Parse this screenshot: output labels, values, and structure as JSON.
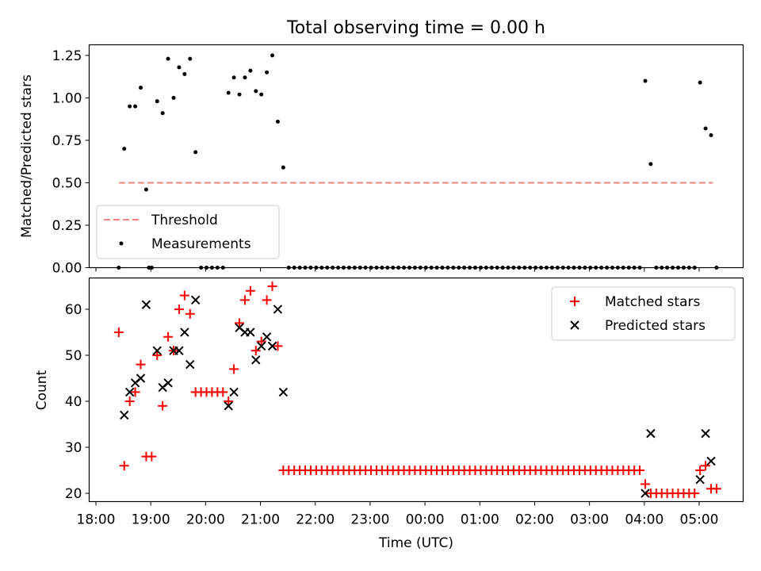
{
  "chart_data": [
    {
      "type": "scatter",
      "title": "Total observing time = 0.00 h",
      "xlabel": "",
      "ylabel": "Matched/Predicted stars",
      "xlim": [
        "18:00",
        "05:55"
      ],
      "ylim": [
        0,
        1.3125
      ],
      "yticks": [
        "0.00",
        "0.25",
        "0.50",
        "0.75",
        "1.00",
        "1.25"
      ],
      "ytick_values": [
        0,
        0.25,
        0.5,
        0.75,
        1.0,
        1.25
      ],
      "grid": false,
      "legend": "lower-left",
      "series": [
        {
          "name": "Threshold",
          "kind": "dashed-line",
          "color": "#ff8080",
          "x": [
            "18:25",
            "05:15"
          ],
          "y": [
            0.5,
            0.5
          ]
        },
        {
          "name": "Measurements",
          "kind": "dots",
          "color": "#000000",
          "points": [
            [
              "18:25",
              0.0
            ],
            [
              "18:31",
              0.7
            ],
            [
              "18:37",
              0.95
            ],
            [
              "18:43",
              0.95
            ],
            [
              "18:49",
              1.06
            ],
            [
              "18:55",
              0.46
            ],
            [
              "18:58",
              0.0
            ],
            [
              "19:01",
              0.0
            ],
            [
              "19:07",
              0.98
            ],
            [
              "19:13",
              0.91
            ],
            [
              "19:19",
              1.23
            ],
            [
              "19:25",
              1.0
            ],
            [
              "19:31",
              1.18
            ],
            [
              "19:37",
              1.14
            ],
            [
              "19:43",
              1.23
            ],
            [
              "19:49",
              0.68
            ],
            [
              "19:55",
              0.0
            ],
            [
              "20:01",
              0.0
            ],
            [
              "20:07",
              0.0
            ],
            [
              "20:13",
              0.0
            ],
            [
              "20:19",
              0.0
            ],
            [
              "20:25",
              1.03
            ],
            [
              "20:31",
              1.12
            ],
            [
              "20:37",
              1.02
            ],
            [
              "20:43",
              1.12
            ],
            [
              "20:49",
              1.16
            ],
            [
              "20:55",
              1.04
            ],
            [
              "21:01",
              1.02
            ],
            [
              "21:07",
              1.15
            ],
            [
              "21:13",
              1.25
            ],
            [
              "21:19",
              0.86
            ],
            [
              "21:25",
              0.59
            ],
            [
              "21:31",
              0.0
            ],
            [
              "21:37",
              0.0
            ],
            [
              "21:43",
              0.0
            ],
            [
              "21:49",
              0.0
            ],
            [
              "21:55",
              0.0
            ],
            [
              "22:01",
              0.0
            ],
            [
              "22:07",
              0.0
            ],
            [
              "22:13",
              0.0
            ],
            [
              "22:19",
              0.0
            ],
            [
              "22:25",
              0.0
            ],
            [
              "22:31",
              0.0
            ],
            [
              "22:37",
              0.0
            ],
            [
              "22:43",
              0.0
            ],
            [
              "22:49",
              0.0
            ],
            [
              "22:55",
              0.0
            ],
            [
              "23:01",
              0.0
            ],
            [
              "23:07",
              0.0
            ],
            [
              "23:13",
              0.0
            ],
            [
              "23:19",
              0.0
            ],
            [
              "23:25",
              0.0
            ],
            [
              "23:31",
              0.0
            ],
            [
              "23:37",
              0.0
            ],
            [
              "23:43",
              0.0
            ],
            [
              "23:49",
              0.0
            ],
            [
              "23:55",
              0.0
            ],
            [
              "00:01",
              0.0
            ],
            [
              "00:07",
              0.0
            ],
            [
              "00:13",
              0.0
            ],
            [
              "00:19",
              0.0
            ],
            [
              "00:25",
              0.0
            ],
            [
              "00:31",
              0.0
            ],
            [
              "00:37",
              0.0
            ],
            [
              "00:43",
              0.0
            ],
            [
              "00:49",
              0.0
            ],
            [
              "00:55",
              0.0
            ],
            [
              "01:01",
              0.0
            ],
            [
              "01:07",
              0.0
            ],
            [
              "01:13",
              0.0
            ],
            [
              "01:19",
              0.0
            ],
            [
              "01:25",
              0.0
            ],
            [
              "01:31",
              0.0
            ],
            [
              "01:37",
              0.0
            ],
            [
              "01:43",
              0.0
            ],
            [
              "01:49",
              0.0
            ],
            [
              "01:55",
              0.0
            ],
            [
              "02:01",
              0.0
            ],
            [
              "02:07",
              0.0
            ],
            [
              "02:13",
              0.0
            ],
            [
              "02:19",
              0.0
            ],
            [
              "02:25",
              0.0
            ],
            [
              "02:31",
              0.0
            ],
            [
              "02:37",
              0.0
            ],
            [
              "02:43",
              0.0
            ],
            [
              "02:49",
              0.0
            ],
            [
              "02:55",
              0.0
            ],
            [
              "03:01",
              0.0
            ],
            [
              "03:07",
              0.0
            ],
            [
              "03:13",
              0.0
            ],
            [
              "03:19",
              0.0
            ],
            [
              "03:25",
              0.0
            ],
            [
              "03:31",
              0.0
            ],
            [
              "03:37",
              0.0
            ],
            [
              "03:43",
              0.0
            ],
            [
              "03:49",
              0.0
            ],
            [
              "03:55",
              0.0
            ],
            [
              "04:01",
              1.1
            ],
            [
              "04:07",
              0.61
            ],
            [
              "04:13",
              0.0
            ],
            [
              "04:19",
              0.0
            ],
            [
              "04:25",
              0.0
            ],
            [
              "04:31",
              0.0
            ],
            [
              "04:37",
              0.0
            ],
            [
              "04:43",
              0.0
            ],
            [
              "04:49",
              0.0
            ],
            [
              "04:55",
              0.0
            ],
            [
              "05:01",
              1.09
            ],
            [
              "05:07",
              0.82
            ],
            [
              "05:13",
              0.78
            ],
            [
              "05:19",
              0.0
            ]
          ]
        }
      ]
    },
    {
      "type": "scatter",
      "title": "",
      "xlabel": "Time (UTC)",
      "ylabel": "Count",
      "xlim": [
        "18:00",
        "05:55"
      ],
      "ylim": [
        18.2,
        66.8
      ],
      "yticks": [
        "20",
        "30",
        "40",
        "50",
        "60"
      ],
      "ytick_values": [
        20,
        30,
        40,
        50,
        60
      ],
      "xticks": [
        "18:00",
        "19:00",
        "20:00",
        "21:00",
        "22:00",
        "23:00",
        "00:00",
        "01:00",
        "02:00",
        "03:00",
        "04:00",
        "05:00"
      ],
      "grid": false,
      "legend": "upper-right",
      "series": [
        {
          "name": "Matched stars",
          "marker": "+",
          "color": "#ff0000",
          "points": [
            [
              "18:25",
              55
            ],
            [
              "18:31",
              26
            ],
            [
              "18:37",
              40
            ],
            [
              "18:43",
              42
            ],
            [
              "18:49",
              48
            ],
            [
              "18:55",
              28
            ],
            [
              "19:01",
              28
            ],
            [
              "19:07",
              50
            ],
            [
              "19:13",
              39
            ],
            [
              "19:19",
              54
            ],
            [
              "19:25",
              51
            ],
            [
              "19:31",
              60
            ],
            [
              "19:37",
              63
            ],
            [
              "19:43",
              59
            ],
            [
              "19:49",
              42
            ],
            [
              "19:55",
              42
            ],
            [
              "20:01",
              42
            ],
            [
              "20:07",
              42
            ],
            [
              "20:13",
              42
            ],
            [
              "20:19",
              42
            ],
            [
              "20:25",
              40
            ],
            [
              "20:31",
              47
            ],
            [
              "20:37",
              57
            ],
            [
              "20:43",
              62
            ],
            [
              "20:49",
              64
            ],
            [
              "20:55",
              51
            ],
            [
              "21:01",
              53
            ],
            [
              "21:07",
              62
            ],
            [
              "21:13",
              65
            ],
            [
              "21:19",
              52
            ],
            [
              "21:25",
              25
            ],
            [
              "21:31",
              25
            ],
            [
              "21:37",
              25
            ],
            [
              "21:43",
              25
            ],
            [
              "21:49",
              25
            ],
            [
              "21:55",
              25
            ],
            [
              "22:01",
              25
            ],
            [
              "22:07",
              25
            ],
            [
              "22:13",
              25
            ],
            [
              "22:19",
              25
            ],
            [
              "22:25",
              25
            ],
            [
              "22:31",
              25
            ],
            [
              "22:37",
              25
            ],
            [
              "22:43",
              25
            ],
            [
              "22:49",
              25
            ],
            [
              "22:55",
              25
            ],
            [
              "23:01",
              25
            ],
            [
              "23:07",
              25
            ],
            [
              "23:13",
              25
            ],
            [
              "23:19",
              25
            ],
            [
              "23:25",
              25
            ],
            [
              "23:31",
              25
            ],
            [
              "23:37",
              25
            ],
            [
              "23:43",
              25
            ],
            [
              "23:49",
              25
            ],
            [
              "23:55",
              25
            ],
            [
              "00:01",
              25
            ],
            [
              "00:07",
              25
            ],
            [
              "00:13",
              25
            ],
            [
              "00:19",
              25
            ],
            [
              "00:25",
              25
            ],
            [
              "00:31",
              25
            ],
            [
              "00:37",
              25
            ],
            [
              "00:43",
              25
            ],
            [
              "00:49",
              25
            ],
            [
              "00:55",
              25
            ],
            [
              "01:01",
              25
            ],
            [
              "01:07",
              25
            ],
            [
              "01:13",
              25
            ],
            [
              "01:19",
              25
            ],
            [
              "01:25",
              25
            ],
            [
              "01:31",
              25
            ],
            [
              "01:37",
              25
            ],
            [
              "01:43",
              25
            ],
            [
              "01:49",
              25
            ],
            [
              "01:55",
              25
            ],
            [
              "02:01",
              25
            ],
            [
              "02:07",
              25
            ],
            [
              "02:13",
              25
            ],
            [
              "02:19",
              25
            ],
            [
              "02:25",
              25
            ],
            [
              "02:31",
              25
            ],
            [
              "02:37",
              25
            ],
            [
              "02:43",
              25
            ],
            [
              "02:49",
              25
            ],
            [
              "02:55",
              25
            ],
            [
              "03:01",
              25
            ],
            [
              "03:07",
              25
            ],
            [
              "03:13",
              25
            ],
            [
              "03:19",
              25
            ],
            [
              "03:25",
              25
            ],
            [
              "03:31",
              25
            ],
            [
              "03:37",
              25
            ],
            [
              "03:43",
              25
            ],
            [
              "03:49",
              25
            ],
            [
              "03:55",
              25
            ],
            [
              "04:01",
              22
            ],
            [
              "04:07",
              20
            ],
            [
              "04:13",
              20
            ],
            [
              "04:19",
              20
            ],
            [
              "04:25",
              20
            ],
            [
              "04:31",
              20
            ],
            [
              "04:37",
              20
            ],
            [
              "04:43",
              20
            ],
            [
              "04:49",
              20
            ],
            [
              "04:55",
              20
            ],
            [
              "05:01",
              25
            ],
            [
              "05:07",
              26
            ],
            [
              "05:13",
              21
            ],
            [
              "05:19",
              21
            ]
          ]
        },
        {
          "name": "Predicted stars",
          "marker": "x",
          "color": "#000000",
          "points": [
            [
              "18:31",
              37
            ],
            [
              "18:37",
              42
            ],
            [
              "18:43",
              44
            ],
            [
              "18:49",
              45
            ],
            [
              "18:55",
              61
            ],
            [
              "19:07",
              51
            ],
            [
              "19:13",
              43
            ],
            [
              "19:19",
              44
            ],
            [
              "19:25",
              51
            ],
            [
              "19:31",
              51
            ],
            [
              "19:37",
              55
            ],
            [
              "19:43",
              48
            ],
            [
              "19:49",
              62
            ],
            [
              "20:25",
              39
            ],
            [
              "20:31",
              42
            ],
            [
              "20:37",
              56
            ],
            [
              "20:43",
              55
            ],
            [
              "20:49",
              55
            ],
            [
              "20:55",
              49
            ],
            [
              "21:01",
              52
            ],
            [
              "21:07",
              54
            ],
            [
              "21:13",
              52
            ],
            [
              "21:19",
              60
            ],
            [
              "21:25",
              42
            ],
            [
              "04:01",
              20
            ],
            [
              "04:07",
              33
            ],
            [
              "05:01",
              23
            ],
            [
              "05:07",
              33
            ],
            [
              "05:13",
              27
            ]
          ]
        }
      ]
    }
  ]
}
